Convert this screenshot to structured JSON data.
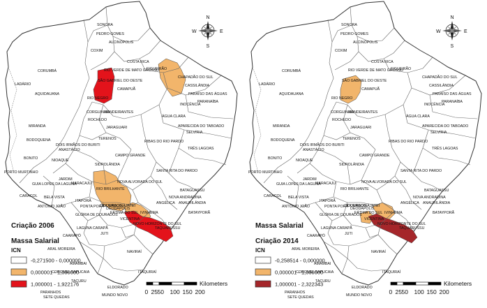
{
  "maps": [
    {
      "title": "Criação 2006",
      "subtitle": "Massa Salarial",
      "legend_title": "ICN",
      "legend": [
        {
          "label": "-0,271500 - 0,000000",
          "color": "#ffffff"
        },
        {
          "label": "0,000001 - 1,000000",
          "color": "#f2b56b"
        },
        {
          "label": "1,000001 - 1,922176",
          "color": "#e3131b"
        }
      ]
    },
    {
      "title": "Massa Salarial",
      "subtitle": "Criação 2014",
      "legend_title": "ICN",
      "legend": [
        {
          "label": "-0,258514 - 0,000000",
          "color": "#ffffff"
        },
        {
          "label": "0,000001 - 1,000000",
          "color": "#f2b56b"
        },
        {
          "label": "1,000001 - 2,322343",
          "color": "#a5262a"
        }
      ]
    }
  ],
  "scale": {
    "unit": "Kilometers",
    "ticks": [
      "0",
      "25",
      "50",
      "100",
      "150",
      "200"
    ]
  },
  "compass": {
    "n": "N",
    "s": "S",
    "e": "E",
    "w": "W"
  },
  "places": [
    {
      "name": "SONORA"
    },
    {
      "name": "PEDRO GOMES"
    },
    {
      "name": "ALCINÓPOLIS"
    },
    {
      "name": "COXIM"
    },
    {
      "name": "FIGUEIRÃO"
    },
    {
      "name": "COSTA RICA"
    },
    {
      "name": "RIO VERDE DE MATO GROSSO"
    },
    {
      "name": "CHAPADÃO DO SUL"
    },
    {
      "name": "CORUMBÁ"
    },
    {
      "name": "LADÁRIO"
    },
    {
      "name": "SÃO GABRIEL DO OESTE"
    },
    {
      "name": "CAMAPUÃ"
    },
    {
      "name": "CASSILÂNDIA"
    },
    {
      "name": "PARAÍSO DAS ÁGUAS"
    },
    {
      "name": "RIO NEGRO"
    },
    {
      "name": "PARANAÍBA"
    },
    {
      "name": "AQUIDAUANA"
    },
    {
      "name": "BANDEIRANTES"
    },
    {
      "name": "INOCÊNCIA"
    },
    {
      "name": "ÁGUA CLARA"
    },
    {
      "name": "CORGUINHO"
    },
    {
      "name": "ROCHEDO"
    },
    {
      "name": "APARECIDA DO TABOADO"
    },
    {
      "name": "MIRANDA"
    },
    {
      "name": "JARAGUARI"
    },
    {
      "name": "SELVÍRIA"
    },
    {
      "name": "BODOQUENA"
    },
    {
      "name": "TERENOS"
    },
    {
      "name": "DOIS IRMÃOS DO BURITI"
    },
    {
      "name": "RIBAS DO RIO PARDO"
    },
    {
      "name": "TRÊS LAGOAS"
    },
    {
      "name": "ANASTÁCIO"
    },
    {
      "name": "BONITO"
    },
    {
      "name": "CAMPO GRANDE"
    },
    {
      "name": "NIOAQUE"
    },
    {
      "name": "SIDROLÂNDIA"
    },
    {
      "name": "PORTO MURTINHO"
    },
    {
      "name": "SANTA RITA DO PARDO"
    },
    {
      "name": "NOVA ALVORADA DO SUL"
    },
    {
      "name": "JARDIM"
    },
    {
      "name": "GUIA LOPES DA LAGUNA"
    },
    {
      "name": "MARACAJU"
    },
    {
      "name": "RIO BRILHANTE"
    },
    {
      "name": "BATAGUASSU"
    },
    {
      "name": "CARACOL"
    },
    {
      "name": "BELA VISTA"
    },
    {
      "name": "NOVA ANDRADINA"
    },
    {
      "name": "ANTÔNIO JOÃO"
    },
    {
      "name": "PONTA PORÃ"
    },
    {
      "name": "DOURADOS"
    },
    {
      "name": "ANGÉLICA"
    },
    {
      "name": "BATAYPORÃ"
    },
    {
      "name": "ANAURILÂNDIA"
    },
    {
      "name": "LAGUNA CARAPÃ"
    },
    {
      "name": "IVINHEMA"
    },
    {
      "name": "GLÓRIA DE DOURADOS"
    },
    {
      "name": "NOVO HORIZONTE DO SUL"
    },
    {
      "name": "TAQUARUSSU"
    },
    {
      "name": "CAARAPÓ"
    },
    {
      "name": "JUTI"
    },
    {
      "name": "ARAL MOREIRA"
    },
    {
      "name": "NAVIRAÍ"
    },
    {
      "name": "AMAMBAI"
    },
    {
      "name": "CORONEL SAPUCAIA"
    },
    {
      "name": "TACURU"
    },
    {
      "name": "ITAQUIRAÍ"
    },
    {
      "name": "PARANHOS"
    },
    {
      "name": "SETE QUEDAS"
    },
    {
      "name": "ELDORADO"
    },
    {
      "name": "MUNDO NOVO"
    },
    {
      "name": "ITAPORÃ"
    },
    {
      "name": "DEODÁPOLIS"
    },
    {
      "name": "FÁTIMA DO SUL"
    },
    {
      "name": "VICENTINA"
    },
    {
      "name": "JATEÍ"
    },
    {
      "name": "DOURADINA"
    }
  ]
}
